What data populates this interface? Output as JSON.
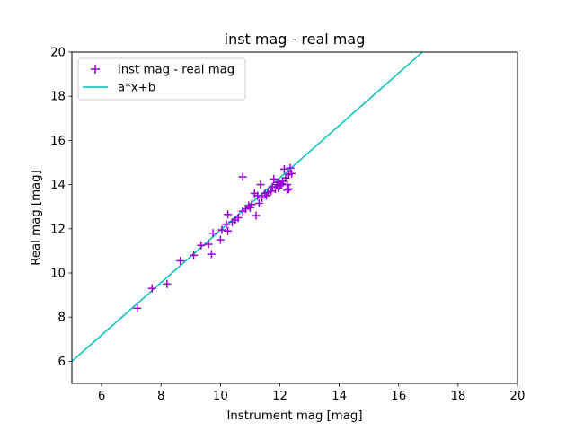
{
  "chart_data": {
    "type": "scatter",
    "title": "inst mag - real mag",
    "xlabel": "Instrument mag [mag]",
    "ylabel": "Real mag [mag]",
    "xlim": [
      5,
      20
    ],
    "ylim": [
      5,
      20
    ],
    "xticks": [
      "6",
      "8",
      "10",
      "12",
      "14",
      "16",
      "18",
      "20"
    ],
    "yticks": [
      "6",
      "8",
      "10",
      "12",
      "14",
      "16",
      "18",
      "20"
    ],
    "grid": false,
    "legend_position": "top-left",
    "colors": {
      "points": "#9400d3",
      "fit_line": "#00bfbf"
    },
    "series": [
      {
        "name": "inst mag - real mag",
        "kind": "scatter",
        "marker": "+",
        "points": [
          [
            7.2,
            8.4
          ],
          [
            7.7,
            9.3
          ],
          [
            8.2,
            9.5
          ],
          [
            8.65,
            10.55
          ],
          [
            9.1,
            10.8
          ],
          [
            9.35,
            11.25
          ],
          [
            9.6,
            11.3
          ],
          [
            9.7,
            10.85
          ],
          [
            9.75,
            11.8
          ],
          [
            10.0,
            11.5
          ],
          [
            10.05,
            11.95
          ],
          [
            10.2,
            12.2
          ],
          [
            10.25,
            11.9
          ],
          [
            10.25,
            12.65
          ],
          [
            10.4,
            12.3
          ],
          [
            10.5,
            12.4
          ],
          [
            10.6,
            12.5
          ],
          [
            10.75,
            12.8
          ],
          [
            10.75,
            14.35
          ],
          [
            10.85,
            12.9
          ],
          [
            10.95,
            13.05
          ],
          [
            11.0,
            12.95
          ],
          [
            11.05,
            13.1
          ],
          [
            11.15,
            13.6
          ],
          [
            11.2,
            12.6
          ],
          [
            11.25,
            13.5
          ],
          [
            11.3,
            13.15
          ],
          [
            11.35,
            14.0
          ],
          [
            11.4,
            13.4
          ],
          [
            11.5,
            13.6
          ],
          [
            11.55,
            13.5
          ],
          [
            11.6,
            13.65
          ],
          [
            11.7,
            13.7
          ],
          [
            11.75,
            13.9
          ],
          [
            11.8,
            14.25
          ],
          [
            11.85,
            13.8
          ],
          [
            11.9,
            14.0
          ],
          [
            11.95,
            14.1
          ],
          [
            12.0,
            13.95
          ],
          [
            12.1,
            14.15
          ],
          [
            12.15,
            14.7
          ],
          [
            12.2,
            14.3
          ],
          [
            12.25,
            14.0
          ],
          [
            12.25,
            13.75
          ],
          [
            12.3,
            14.45
          ],
          [
            12.35,
            14.75
          ],
          [
            12.4,
            14.5
          ],
          [
            12.05,
            14.05
          ],
          [
            11.95,
            13.85
          ],
          [
            12.3,
            13.8
          ]
        ]
      },
      {
        "name": "a*x+b",
        "kind": "line",
        "x": [
          5,
          16.8
        ],
        "y": [
          6.0,
          20.0
        ]
      }
    ]
  }
}
